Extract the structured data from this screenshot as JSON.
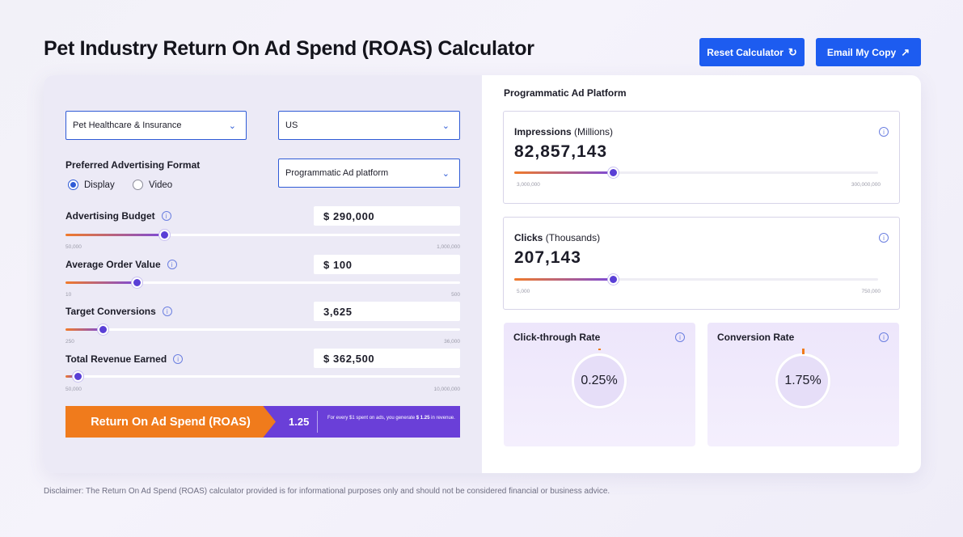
{
  "header": {
    "title": "Pet Industry Return On Ad Spend (ROAS) Calculator",
    "reset_label": "Reset Calculator",
    "email_label": "Email My Copy"
  },
  "left": {
    "industry_select": "Pet Healthcare & Insurance",
    "country_select": "US",
    "format_heading": "Preferred Advertising Format",
    "format_options": [
      {
        "label": "Display",
        "selected": true
      },
      {
        "label": "Video",
        "selected": false
      }
    ],
    "platform_select": "Programmatic Ad platform",
    "fields": [
      {
        "label": "Advertising Budget",
        "value": "$ 290,000",
        "min": "50,000",
        "max": "1,000,000",
        "fraction": 0.25
      },
      {
        "label": "Average Order Value",
        "value": "$ 100",
        "min": "10",
        "max": "500",
        "fraction": 0.18
      },
      {
        "label": "Target Conversions",
        "value": "3,625",
        "min": "250",
        "max": "36,000",
        "fraction": 0.095
      },
      {
        "label": "Total Revenue Earned",
        "value": "$ 362,500",
        "min": "50,000",
        "max": "10,000,000",
        "fraction": 0.03
      }
    ],
    "roas": {
      "label": "Return On Ad Spend (ROAS)",
      "value": "1.25",
      "note_prefix": "For every $1 spent on ads, you generate",
      "note_amount": "$ 1.25",
      "note_suffix": "in revenue."
    }
  },
  "right": {
    "title": "Programmatic Ad Platform",
    "metrics": [
      {
        "label": "Impressions",
        "unit": "(Millions)",
        "value": "82,857,143",
        "min": "3,000,000",
        "max": "300,000,000",
        "fraction": 0.27
      },
      {
        "label": "Clicks",
        "unit": "(Thousands)",
        "value": "207,143",
        "min": "5,000",
        "max": "750,000",
        "fraction": 0.27
      }
    ],
    "rates": [
      {
        "label": "Click-through Rate",
        "value": "0.25%",
        "fraction": 0.0025
      },
      {
        "label": "Conversion Rate",
        "value": "1.75%",
        "fraction": 0.0175
      }
    ]
  },
  "disclaimer": "Disclaimer: The Return On Ad Spend (ROAS) calculator provided is for informational purposes only and should not be considered financial or business advice.",
  "colors": {
    "primary_blue": "#1d5cf0",
    "accent_orange": "#f07b1c",
    "accent_purple": "#6a3fd8"
  },
  "icons": {
    "reset": "refresh-icon",
    "email": "arrow-up-right-icon",
    "dropdown": "chevron-down-icon",
    "info": "info-icon"
  }
}
